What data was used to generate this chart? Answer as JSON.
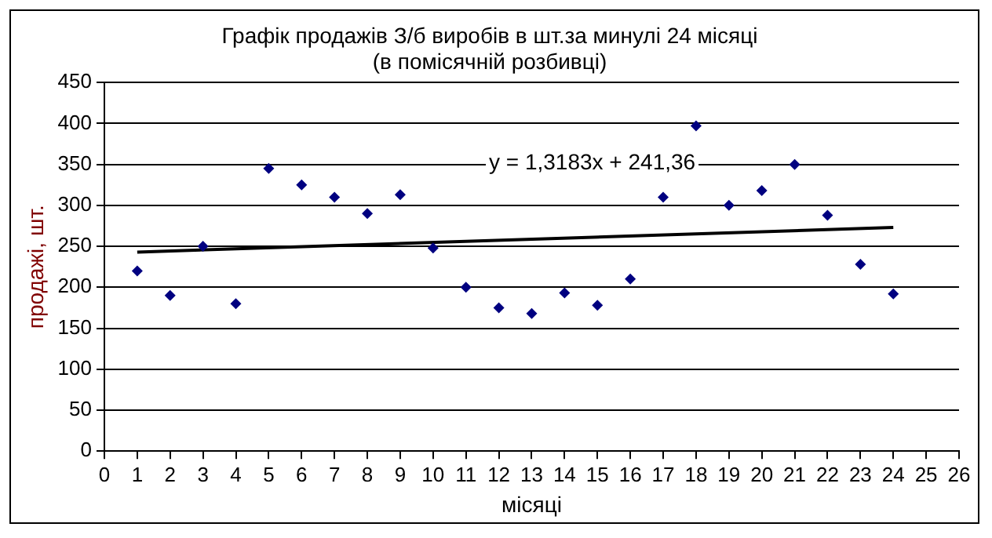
{
  "chart_data": {
    "type": "scatter",
    "title": "Графік продажів З/б виробів в шт.за минулі 24 місяці\n(в помісячній розбивці)",
    "xlabel": "місяці",
    "ylabel": "продажі, шт.",
    "x": [
      1,
      2,
      3,
      4,
      5,
      6,
      7,
      8,
      9,
      10,
      11,
      12,
      13,
      14,
      15,
      16,
      17,
      18,
      19,
      20,
      21,
      22,
      23,
      24
    ],
    "series": [
      {
        "color": "#000080",
        "marker": "diamond",
        "values": [
          220,
          190,
          250,
          180,
          345,
          325,
          310,
          290,
          313,
          248,
          200,
          175,
          168,
          193,
          178,
          210,
          310,
          397,
          300,
          318,
          350,
          288,
          228,
          192
        ]
      },
      {
        "type": "line",
        "color": "#000000",
        "marker": "none",
        "x": [
          1,
          24
        ],
        "values": [
          243,
          273
        ]
      }
    ],
    "annotations": [
      "y = 1,3183x + 241,36"
    ],
    "xlim": [
      0,
      26
    ],
    "xticks": [
      0,
      1,
      2,
      3,
      4,
      5,
      6,
      7,
      8,
      9,
      10,
      11,
      12,
      13,
      14,
      15,
      16,
      17,
      18,
      19,
      20,
      21,
      22,
      23,
      24,
      25,
      26
    ],
    "ylim": [
      0,
      450
    ],
    "yticks": [
      0,
      50,
      100,
      150,
      200,
      250,
      300,
      350,
      400,
      450
    ],
    "grid": "y",
    "legend": false
  }
}
